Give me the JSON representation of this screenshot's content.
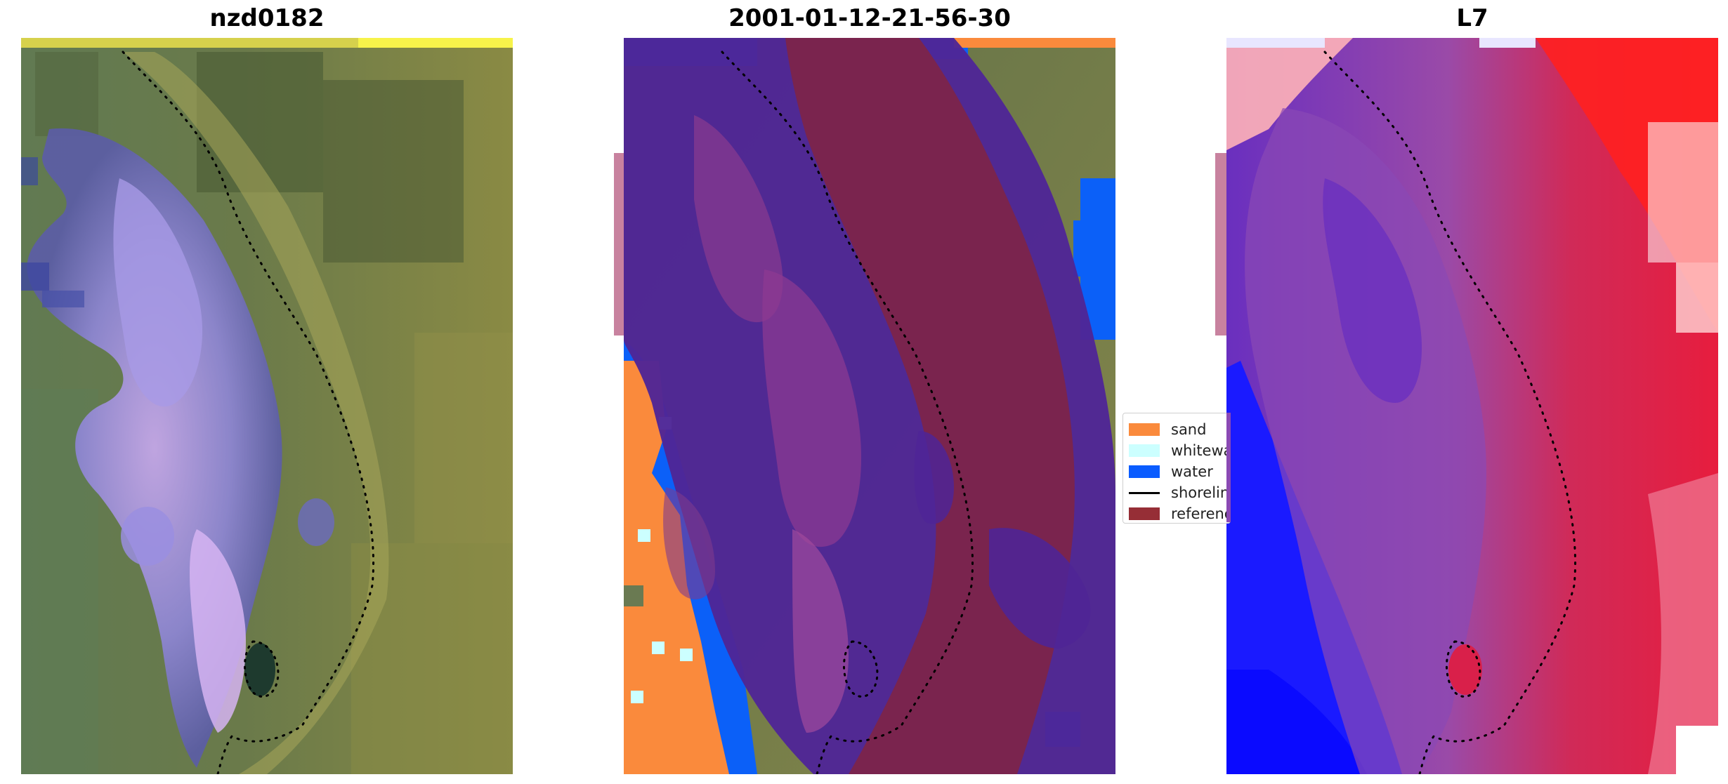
{
  "panels": [
    {
      "title": "nzd0182"
    },
    {
      "title": "2001-01-12-21-56-30"
    },
    {
      "title": "L7"
    }
  ],
  "legend": {
    "items": [
      {
        "label": "sand",
        "color": "#fa8a3c",
        "kind": "patch"
      },
      {
        "label": "whitewater",
        "color": "#ccffff",
        "kind": "patch"
      },
      {
        "label": "water",
        "color": "#0a5cff",
        "kind": "patch"
      },
      {
        "label": "shoreline",
        "color": "#000000",
        "kind": "line"
      },
      {
        "label": "reference",
        "color": "#962e36",
        "kind": "patch"
      }
    ]
  },
  "colors": {
    "vegetation": "#6f7f4e",
    "lake": "#8a80d6",
    "class_purple": "#4f2596",
    "class_maroon": "#7e2448",
    "index_red": "#e0193c",
    "index_blue": "#1a1aff"
  }
}
